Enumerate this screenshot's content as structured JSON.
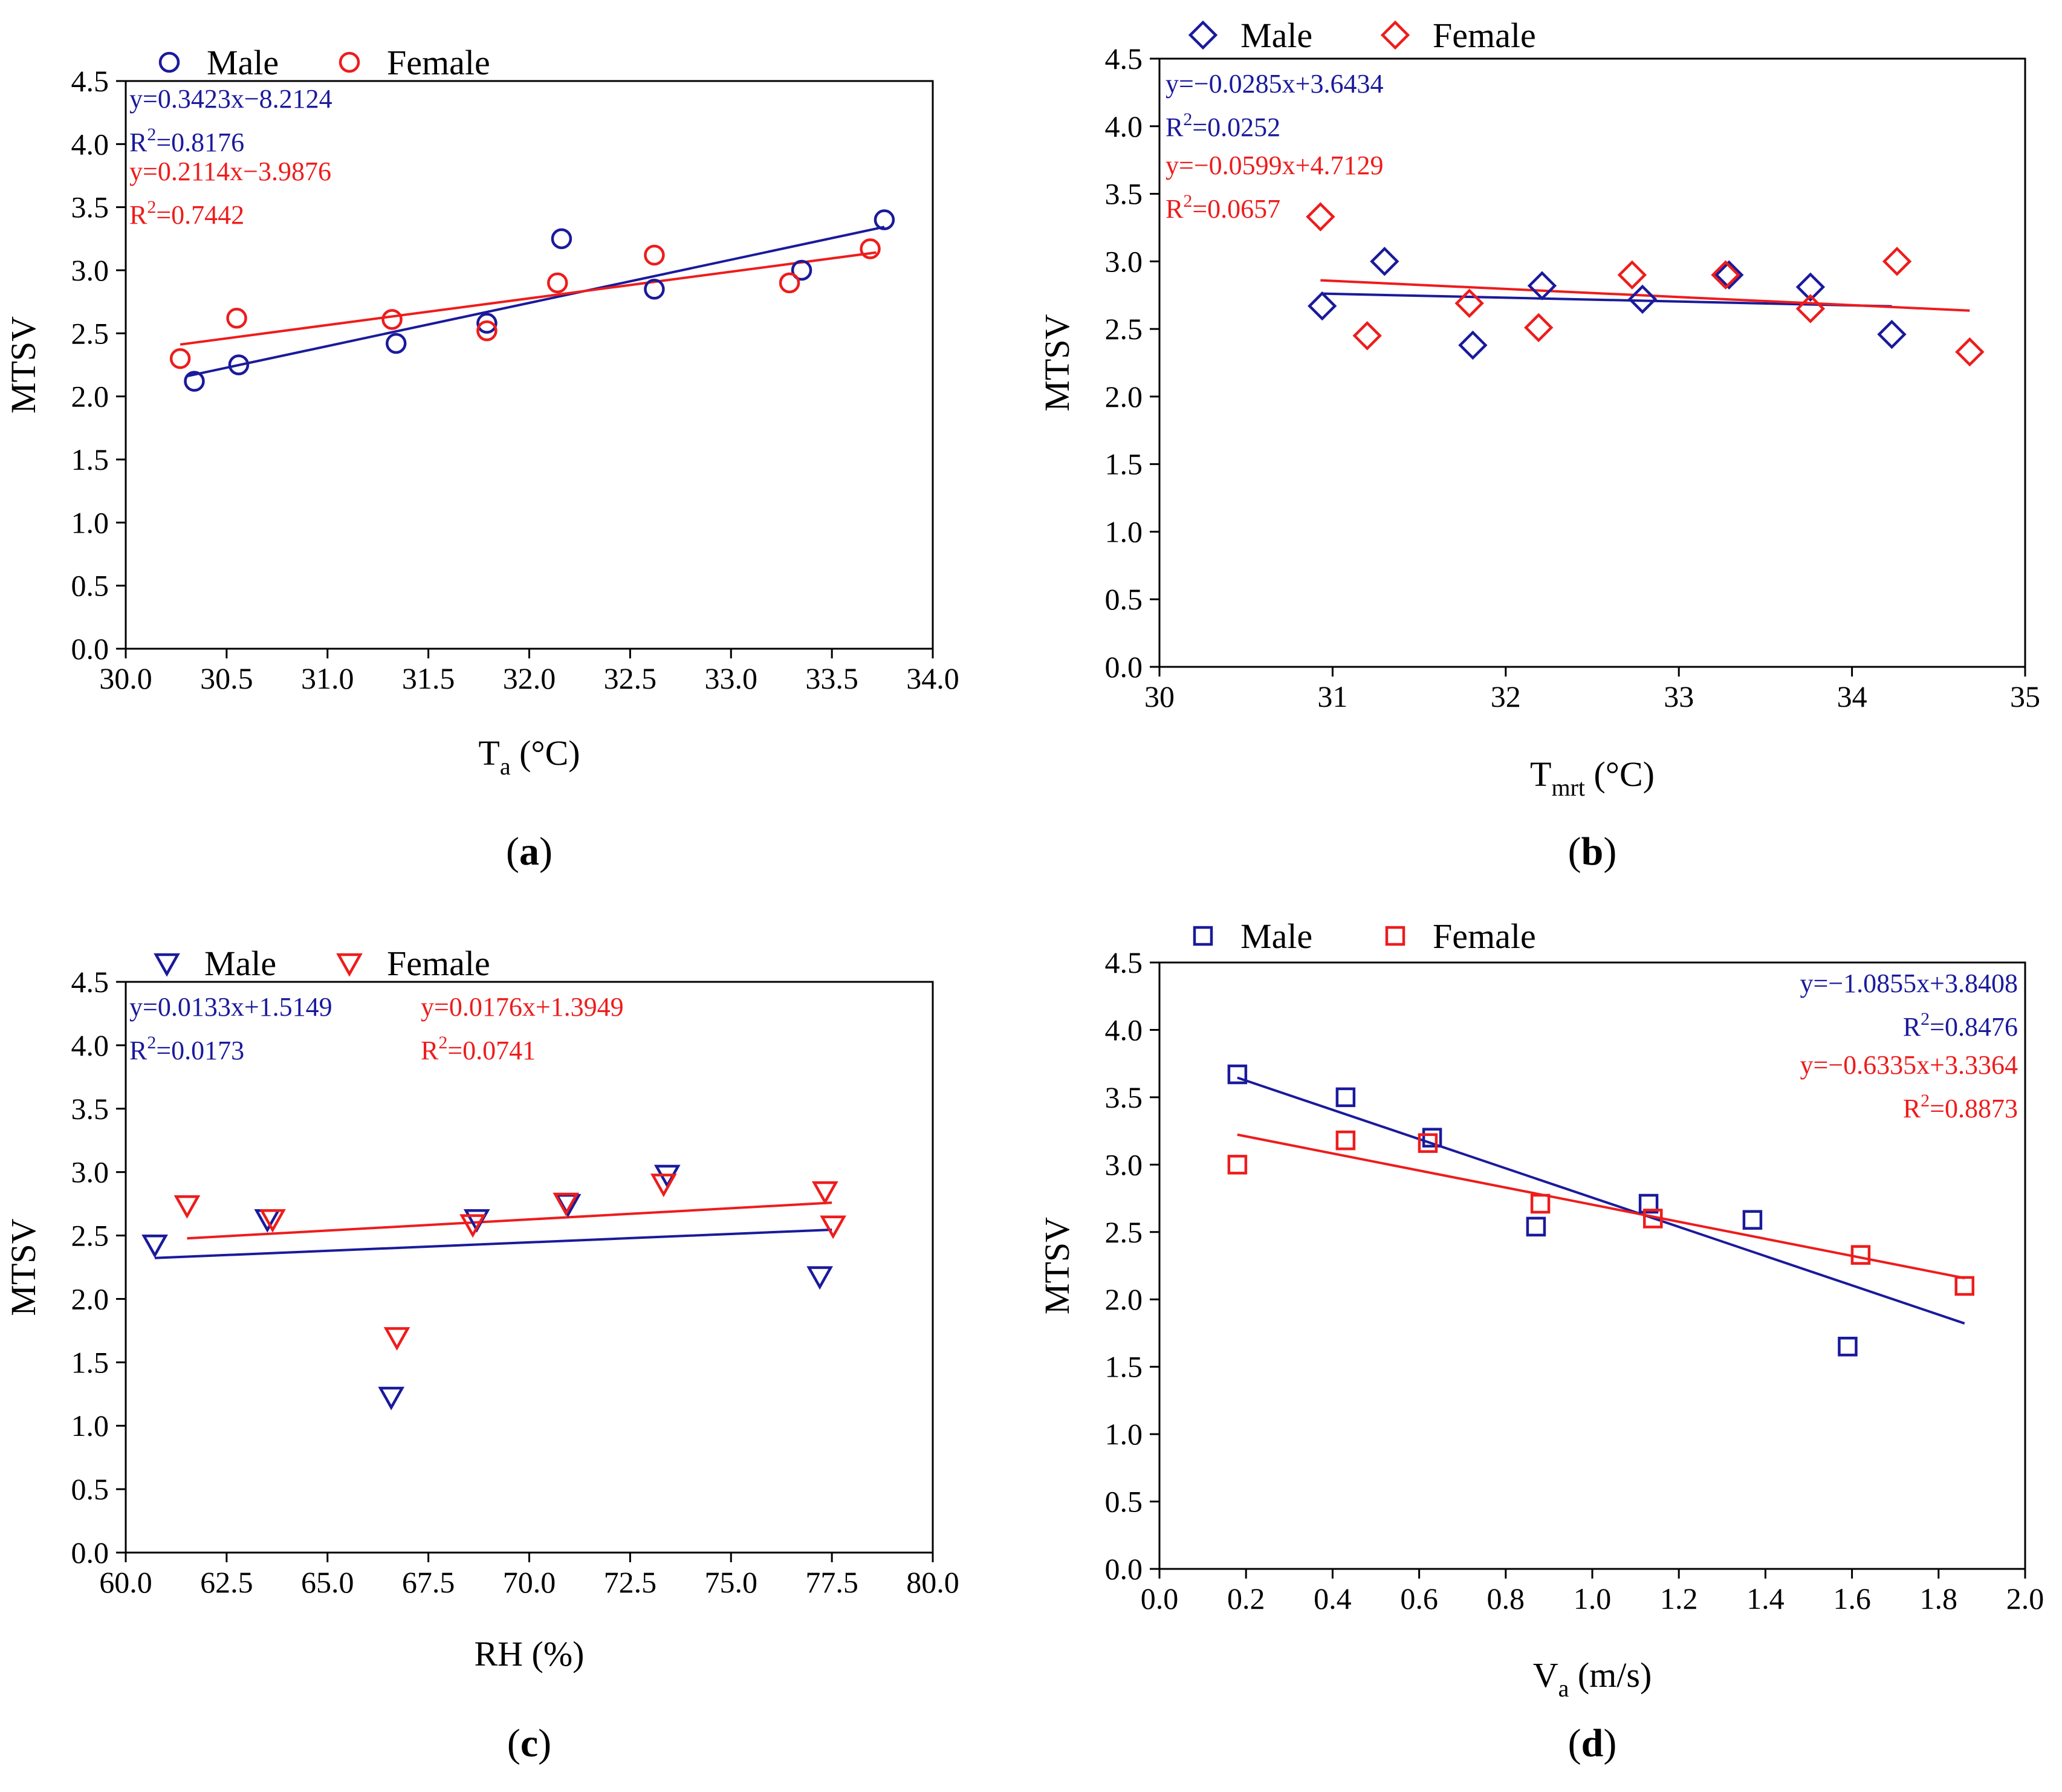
{
  "colors": {
    "male": "#1a1a9c",
    "female": "#ee1c1c"
  },
  "chart_data": [
    {
      "id": "a",
      "type": "scatter",
      "panel_label": "a",
      "marker": "circle",
      "xlabel_main": "T",
      "xlabel_sub": "a",
      "xlabel_unit": " (°C)",
      "ylabel": "MTSV",
      "xlim": [
        30.0,
        34.0
      ],
      "ylim": [
        0.0,
        4.5
      ],
      "xticks": [
        "30.0",
        "30.5",
        "31.0",
        "31.5",
        "32.0",
        "32.5",
        "33.0",
        "33.5",
        "34.0"
      ],
      "yticks": [
        "0.0",
        "0.5",
        "1.0",
        "1.5",
        "2.0",
        "2.5",
        "3.0",
        "3.5",
        "4.0",
        "4.5"
      ],
      "legend": [
        "Male",
        "Female"
      ],
      "series": [
        {
          "name": "Male",
          "points": [
            [
              30.34,
              2.12
            ],
            [
              30.56,
              2.25
            ],
            [
              31.34,
              2.42
            ],
            [
              31.79,
              2.58
            ],
            [
              32.16,
              3.25
            ],
            [
              32.62,
              2.85
            ],
            [
              33.35,
              3.0
            ],
            [
              33.76,
              3.4
            ]
          ],
          "fit": {
            "slope": 0.3423,
            "intercept": -8.2124,
            "x0": 30.3,
            "x1": 33.76
          },
          "equation": "y=0.3423x−8.2124",
          "r2_value": "=0.8176"
        },
        {
          "name": "Female",
          "points": [
            [
              30.27,
              2.3
            ],
            [
              30.55,
              2.62
            ],
            [
              31.32,
              2.61
            ],
            [
              31.79,
              2.52
            ],
            [
              32.14,
              2.9
            ],
            [
              32.62,
              3.12
            ],
            [
              33.29,
              2.9
            ],
            [
              33.69,
              3.17
            ]
          ],
          "fit": {
            "slope": 0.2114,
            "intercept": -3.9876,
            "x0": 30.27,
            "x1": 33.72
          },
          "equation": "y=0.2114x−3.9876",
          "r2_value": "=0.7442"
        }
      ]
    },
    {
      "id": "b",
      "type": "scatter",
      "panel_label": "b",
      "marker": "diamond",
      "xlabel_main": "T",
      "xlabel_sub": "mrt",
      "xlabel_unit": " (°C)",
      "ylabel": "MTSV",
      "xlim": [
        30,
        35
      ],
      "ylim": [
        0.0,
        4.5
      ],
      "xticks": [
        "30",
        "31",
        "32",
        "33",
        "34",
        "35"
      ],
      "yticks": [
        "0.0",
        "0.5",
        "1.0",
        "1.5",
        "2.0",
        "2.5",
        "3.0",
        "3.5",
        "4.0",
        "4.5"
      ],
      "legend": [
        "Male",
        "Female"
      ],
      "series": [
        {
          "name": "Male",
          "points": [
            [
              30.94,
              2.67
            ],
            [
              31.3,
              3.0
            ],
            [
              31.81,
              2.38
            ],
            [
              32.21,
              2.82
            ],
            [
              32.79,
              2.72
            ],
            [
              33.29,
              2.9
            ],
            [
              33.76,
              2.81
            ],
            [
              34.23,
              2.46
            ]
          ],
          "fit": {
            "slope": -0.0285,
            "intercept": 3.6434,
            "x0": 30.94,
            "x1": 34.23
          },
          "equation": "y=−0.0285x+3.6434",
          "r2_value": "=0.0252"
        },
        {
          "name": "Female",
          "points": [
            [
              30.93,
              3.33
            ],
            [
              31.2,
              2.45
            ],
            [
              31.79,
              2.69
            ],
            [
              32.19,
              2.51
            ],
            [
              32.73,
              2.9
            ],
            [
              33.27,
              2.9
            ],
            [
              33.76,
              2.65
            ],
            [
              34.26,
              3.0
            ],
            [
              34.68,
              2.33
            ]
          ],
          "fit": {
            "slope": -0.0599,
            "intercept": 4.7129,
            "x0": 30.93,
            "x1": 34.68
          },
          "equation": "y=−0.0599x+4.7129",
          "r2_value": "=0.0657"
        }
      ]
    },
    {
      "id": "c",
      "type": "scatter",
      "panel_label": "c",
      "marker": "triangle-down",
      "xlabel_main": "RH (%)",
      "xlabel_sub": "",
      "xlabel_unit": "",
      "ylabel": "MTSV",
      "xlim": [
        60.0,
        80.0
      ],
      "ylim": [
        0.0,
        4.5
      ],
      "xticks": [
        "60.0",
        "62.5",
        "65.0",
        "67.5",
        "70.0",
        "72.5",
        "75.0",
        "77.5",
        "80.0"
      ],
      "yticks": [
        "0.0",
        "0.5",
        "1.0",
        "1.5",
        "2.0",
        "2.5",
        "3.0",
        "3.5",
        "4.0",
        "4.5"
      ],
      "legend": [
        "Male",
        "Female"
      ],
      "series": [
        {
          "name": "Male",
          "points": [
            [
              60.72,
              2.43
            ],
            [
              63.51,
              2.63
            ],
            [
              66.58,
              1.23
            ],
            [
              68.7,
              2.63
            ],
            [
              70.96,
              2.75
            ],
            [
              73.42,
              2.98
            ],
            [
              77.2,
              2.18
            ]
          ],
          "fit": {
            "slope": 0.0133,
            "intercept": 1.5149,
            "x0": 60.72,
            "x1": 77.5
          },
          "equation": "y=0.0133x+1.5149",
          "r2_value": "=0.0173"
        },
        {
          "name": "Female",
          "points": [
            [
              61.52,
              2.74
            ],
            [
              63.64,
              2.63
            ],
            [
              66.72,
              1.7
            ],
            [
              68.6,
              2.59
            ],
            [
              70.91,
              2.76
            ],
            [
              73.33,
              2.91
            ],
            [
              77.33,
              2.85
            ],
            [
              77.53,
              2.58
            ]
          ],
          "fit": {
            "slope": 0.0176,
            "intercept": 1.3949,
            "x0": 61.52,
            "x1": 77.5
          },
          "equation": "y=0.0176x+1.3949",
          "r2_value": "=0.0741"
        }
      ]
    },
    {
      "id": "d",
      "type": "scatter",
      "panel_label": "d",
      "marker": "square",
      "xlabel_main": "V",
      "xlabel_sub": "a",
      "xlabel_unit": " (m/s)",
      "ylabel": "MTSV",
      "xlim": [
        0.0,
        2.0
      ],
      "ylim": [
        0.0,
        4.5
      ],
      "xticks": [
        "0.0",
        "0.2",
        "0.4",
        "0.6",
        "0.8",
        "1.0",
        "1.2",
        "1.4",
        "1.6",
        "1.8",
        "2.0"
      ],
      "yticks": [
        "0.0",
        "0.5",
        "1.0",
        "1.5",
        "2.0",
        "2.5",
        "3.0",
        "3.5",
        "4.0",
        "4.5"
      ],
      "legend": [
        "Male",
        "Female"
      ],
      "series": [
        {
          "name": "Male",
          "points": [
            [
              0.18,
              3.67
            ],
            [
              0.43,
              3.5
            ],
            [
              0.63,
              3.2
            ],
            [
              0.87,
              2.54
            ],
            [
              1.13,
              2.71
            ],
            [
              1.37,
              2.59
            ],
            [
              1.59,
              1.65
            ]
          ],
          "fit": {
            "slope": -1.0855,
            "intercept": 3.8408,
            "x0": 0.18,
            "x1": 1.86
          },
          "equation": "y=−1.0855x+3.8408",
          "r2_value": "=0.8476"
        },
        {
          "name": "Female",
          "points": [
            [
              0.18,
              3.0
            ],
            [
              0.43,
              3.18
            ],
            [
              0.62,
              3.16
            ],
            [
              0.88,
              2.71
            ],
            [
              1.14,
              2.6
            ],
            [
              1.62,
              2.33
            ],
            [
              1.86,
              2.1
            ]
          ],
          "fit": {
            "slope": -0.6335,
            "intercept": 3.3364,
            "x0": 0.18,
            "x1": 1.86
          },
          "equation": "y=−0.6335x+3.3364",
          "r2_value": "=0.8873"
        }
      ]
    }
  ]
}
